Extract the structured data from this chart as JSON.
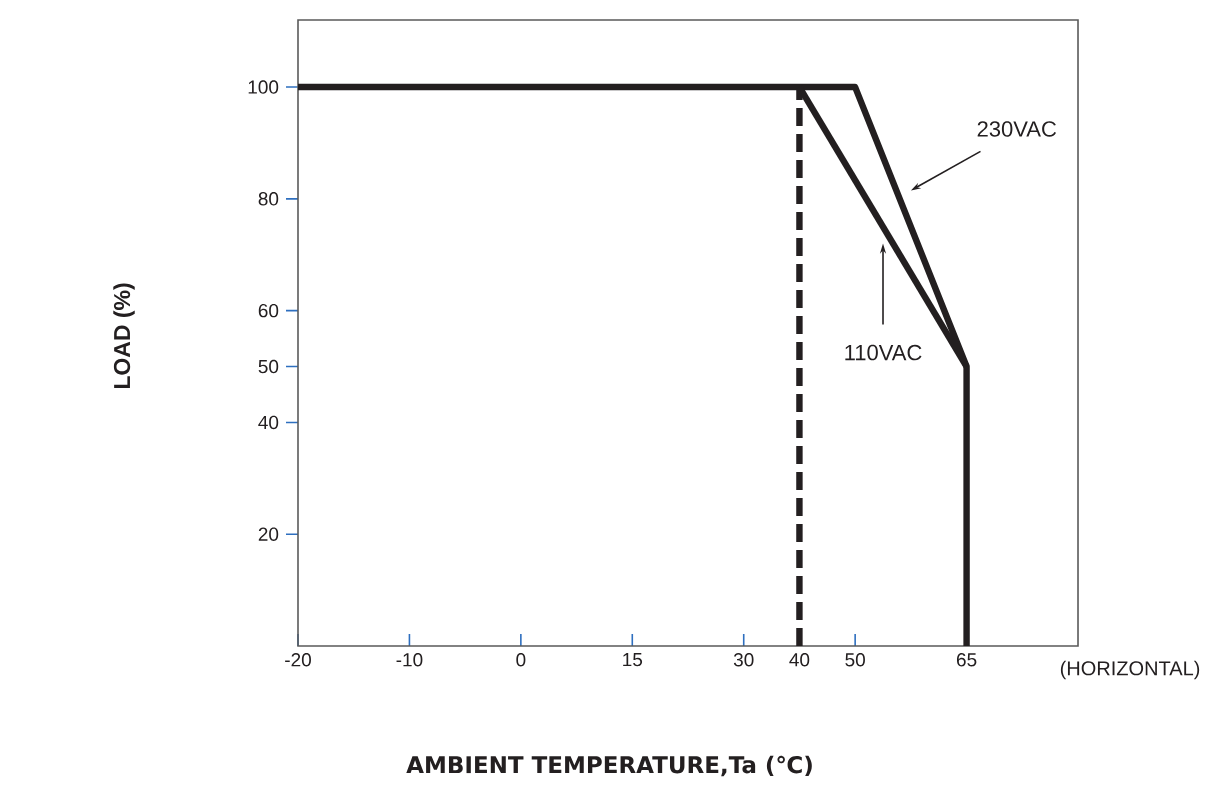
{
  "chart_data": {
    "type": "line",
    "xlabel": "AMBIENT TEMPERATURE,Ta (℃)",
    "ylabel": "LOAD (%)",
    "annotations": [
      "(HORIZONTAL)"
    ],
    "categories": [
      "-20",
      null,
      "-10",
      null,
      "0",
      null,
      "15",
      null,
      "30",
      "40",
      "50",
      null,
      "65"
    ],
    "series": [
      {
        "name": "230VAC",
        "color": "#231f20",
        "x": [
          "-20",
          "50",
          "65",
          "65"
        ],
        "values": [
          100,
          100,
          50,
          0
        ]
      },
      {
        "name": "110VAC",
        "color": "#231f20",
        "x": [
          "40",
          "65"
        ],
        "values": [
          100,
          50
        ]
      }
    ],
    "ref_lines": [
      {
        "axis": "x",
        "value": "40",
        "color": "#231f20",
        "line_style": "dashed"
      }
    ],
    "ylim": [
      0,
      112
    ],
    "yticks": [
      20,
      40,
      50,
      60,
      80,
      100
    ],
    "marker": "none",
    "line_style": "solid",
    "grid": false
  }
}
